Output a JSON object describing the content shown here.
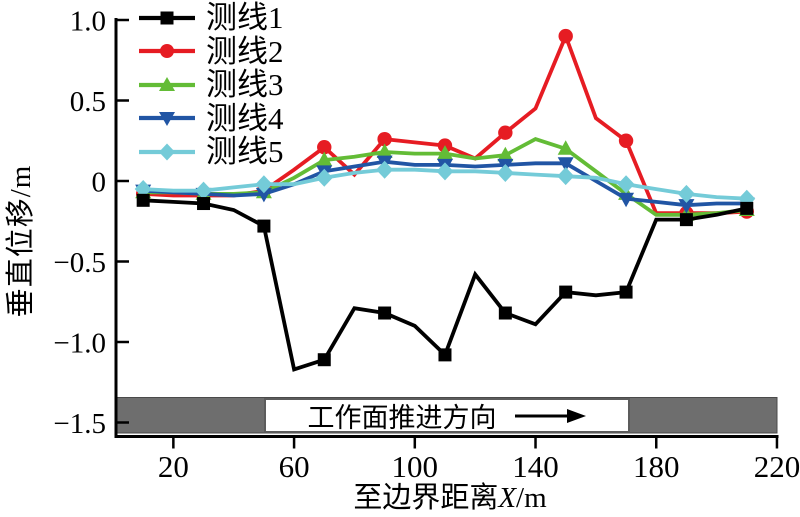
{
  "figure": {
    "y_axis_title": "垂直位移/m",
    "x_axis_title_prefix": "至边界距离",
    "x_axis_title_var": "X",
    "x_axis_title_suffix": "/m",
    "advance_bar": {
      "label": "工作面推进方向",
      "arrow_icon": "right-arrow",
      "bar_color": "#6e6e6e",
      "box_color": "#ffffff"
    }
  },
  "chart_data": {
    "type": "line",
    "title": "",
    "xlabel": "至边界距离 X/m",
    "ylabel": "垂直位移/m",
    "xlim": [
      0,
      220
    ],
    "ylim": [
      -1.59,
      1.0
    ],
    "grid": false,
    "legend_position": "top-left",
    "x_ticks": [
      20,
      60,
      100,
      140,
      180,
      220
    ],
    "x_tick_labels": [
      "20",
      "60",
      "100",
      "140",
      "180",
      "220"
    ],
    "y_ticks": [
      1.0,
      0.5,
      0,
      -0.5,
      -1.0,
      -1.5
    ],
    "y_tick_labels": [
      "1.0",
      "0.5",
      "0",
      "−0.5",
      "−1.0",
      "−1.5"
    ],
    "x": [
      10,
      20,
      30,
      40,
      50,
      60,
      70,
      80,
      90,
      100,
      110,
      120,
      130,
      140,
      150,
      160,
      170,
      180,
      190,
      200,
      210
    ],
    "marker_every": 2,
    "series": [
      {
        "name": "测线2",
        "color": "#e61c23",
        "marker": "circle",
        "values": [
          -0.08,
          -0.09,
          -0.09,
          -0.09,
          -0.06,
          0.07,
          0.21,
          0.04,
          0.26,
          0.24,
          0.22,
          0.14,
          0.3,
          0.45,
          0.9,
          0.39,
          0.25,
          -0.2,
          -0.2,
          -0.2,
          -0.19
        ]
      },
      {
        "name": "测线3",
        "color": "#63bc36",
        "marker": "triangle-up",
        "values": [
          -0.07,
          -0.07,
          -0.08,
          -0.08,
          -0.07,
          0.02,
          0.13,
          0.15,
          0.18,
          0.17,
          0.17,
          0.14,
          0.16,
          0.26,
          0.2,
          0.06,
          -0.08,
          -0.21,
          -0.21,
          -0.2,
          -0.18
        ]
      },
      {
        "name": "测线4",
        "color": "#2155a4",
        "marker": "triangle-down",
        "values": [
          -0.06,
          -0.07,
          -0.08,
          -0.09,
          -0.08,
          -0.02,
          0.06,
          0.09,
          0.12,
          0.1,
          0.1,
          0.09,
          0.1,
          0.11,
          0.11,
          0.0,
          -0.11,
          -0.13,
          -0.15,
          -0.14,
          -0.14
        ]
      },
      {
        "name": "测线5",
        "color": "#74cbd8",
        "marker": "diamond",
        "values": [
          -0.05,
          -0.06,
          -0.06,
          -0.04,
          -0.02,
          -0.02,
          0.02,
          0.05,
          0.07,
          0.07,
          0.06,
          0.06,
          0.05,
          0.04,
          0.03,
          0.02,
          -0.02,
          -0.05,
          -0.08,
          -0.1,
          -0.11
        ]
      },
      {
        "name": "测线1",
        "color": "#000000",
        "marker": "square",
        "values": [
          -0.12,
          -0.13,
          -0.14,
          -0.18,
          -0.28,
          -1.17,
          -1.11,
          -0.79,
          -0.82,
          -0.9,
          -1.08,
          -0.58,
          -0.82,
          -0.89,
          -0.69,
          -0.71,
          -0.69,
          -0.24,
          -0.24,
          -0.21,
          -0.17
        ]
      }
    ],
    "legend_order": [
      "测线1",
      "测线2",
      "测线3",
      "测线4",
      "测线5"
    ]
  }
}
